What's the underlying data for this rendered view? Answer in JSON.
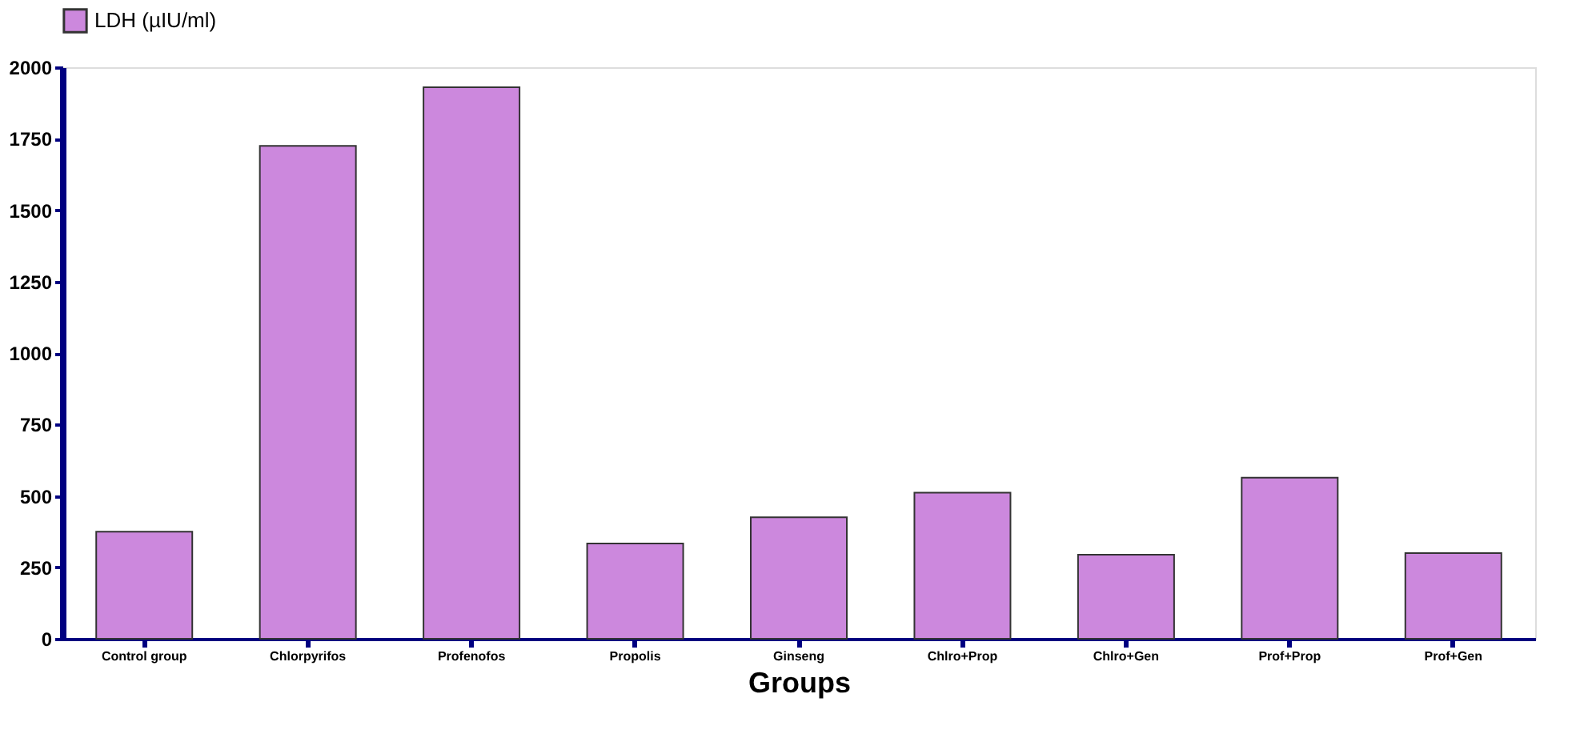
{
  "chart_data": {
    "type": "bar",
    "xlabel": "Groups",
    "categories": [
      "Control group",
      "Chlorpyrifos",
      "Profenofos",
      "Propolis",
      "Ginseng",
      "Chlro+Prop",
      "Chlro+Gen",
      "Prof+Prop",
      "Prof+Gen"
    ],
    "series": [
      {
        "name": "LDH (µIU/ml)",
        "color": "#cc88dd",
        "values": [
          375,
          1725,
          1930,
          333,
          425,
          511,
          294,
          564,
          300
        ]
      }
    ],
    "ylim": [
      0,
      2000
    ],
    "yticks": [
      0,
      250,
      500,
      750,
      1000,
      1250,
      1500,
      1750,
      2000
    ],
    "grid": false,
    "legend": "top left"
  }
}
